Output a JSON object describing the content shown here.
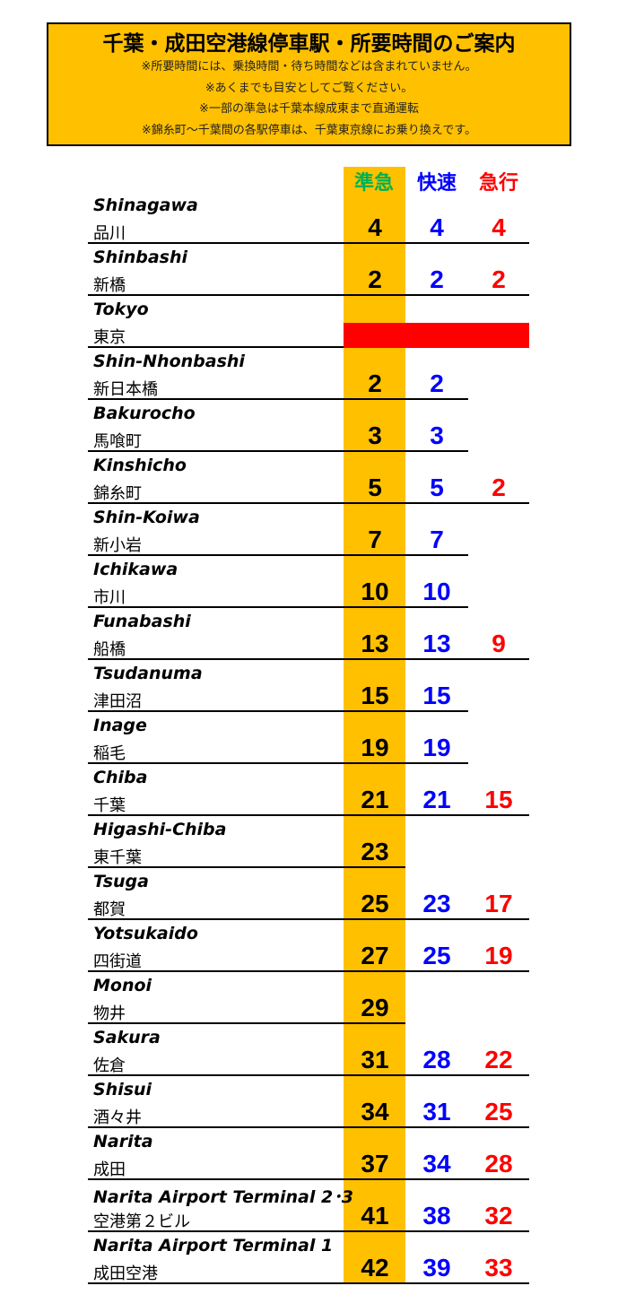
{
  "header": {
    "title": "千葉・成田空港線停車駅・所要時間のご案内",
    "notes": [
      "※所要時間には、乗換時間・待ち時間などは含まれていません。",
      "※あくまでも目安としてご覧ください。",
      "※一部の準急は千葉本線成東まで直通運転",
      "※錦糸町～千葉間の各駅停車は、千葉東京線にお乗り換えです。"
    ]
  },
  "columns": [
    {
      "label": "準急",
      "color": "#00b050"
    },
    {
      "label": "快速",
      "color": "#0000ff"
    },
    {
      "label": "急行",
      "color": "#ff0000"
    }
  ],
  "tokyo_bar_color": "#ff0000",
  "stations": [
    {
      "en": "Shinagawa",
      "ja": "品川",
      "junkyu": "4",
      "kaisoku": "4",
      "kyuko": "4"
    },
    {
      "en": "Shinbashi",
      "ja": "新橋",
      "junkyu": "2",
      "kaisoku": "2",
      "kyuko": "2"
    },
    {
      "en": "Tokyo",
      "ja": "東京",
      "junkyu": "",
      "kaisoku": "",
      "kyuko": ""
    },
    {
      "en": "Shin-Nhonbashi",
      "ja": "新日本橋",
      "junkyu": "2",
      "kaisoku": "2",
      "kyuko": ""
    },
    {
      "en": "Bakurocho",
      "ja": "馬喰町",
      "junkyu": "3",
      "kaisoku": "3",
      "kyuko": ""
    },
    {
      "en": "Kinshicho",
      "ja": "錦糸町",
      "junkyu": "5",
      "kaisoku": "5",
      "kyuko": "2"
    },
    {
      "en": "Shin-Koiwa",
      "ja": "新小岩",
      "junkyu": "7",
      "kaisoku": "7",
      "kyuko": ""
    },
    {
      "en": "Ichikawa",
      "ja": "市川",
      "junkyu": "10",
      "kaisoku": "10",
      "kyuko": ""
    },
    {
      "en": "Funabashi",
      "ja": "船橋",
      "junkyu": "13",
      "kaisoku": "13",
      "kyuko": "9"
    },
    {
      "en": "Tsudanuma",
      "ja": "津田沼",
      "junkyu": "15",
      "kaisoku": "15",
      "kyuko": ""
    },
    {
      "en": "Inage",
      "ja": "稲毛",
      "junkyu": "19",
      "kaisoku": "19",
      "kyuko": ""
    },
    {
      "en": "Chiba",
      "ja": "千葉",
      "junkyu": "21",
      "kaisoku": "21",
      "kyuko": "15"
    },
    {
      "en": "Higashi-Chiba",
      "ja": "東千葉",
      "junkyu": "23",
      "kaisoku": "",
      "kyuko": ""
    },
    {
      "en": "Tsuga",
      "ja": "都賀",
      "junkyu": "25",
      "kaisoku": "23",
      "kyuko": "17"
    },
    {
      "en": "Yotsukaido",
      "ja": "四街道",
      "junkyu": "27",
      "kaisoku": "25",
      "kyuko": "19"
    },
    {
      "en": "Monoi",
      "ja": "物井",
      "junkyu": "29",
      "kaisoku": "",
      "kyuko": ""
    },
    {
      "en": "Sakura",
      "ja": "佐倉",
      "junkyu": "31",
      "kaisoku": "28",
      "kyuko": "22"
    },
    {
      "en": "Shisui",
      "ja": "酒々井",
      "junkyu": "34",
      "kaisoku": "31",
      "kyuko": "25"
    },
    {
      "en": "Narita",
      "ja": "成田",
      "junkyu": "37",
      "kaisoku": "34",
      "kyuko": "28"
    },
    {
      "en": "Narita Airport Terminal 2･3",
      "ja": "空港第２ビル",
      "junkyu": "41",
      "kaisoku": "38",
      "kyuko": "32"
    },
    {
      "en": "Narita Airport Terminal 1",
      "ja": "成田空港",
      "junkyu": "42",
      "kaisoku": "39",
      "kyuko": "33"
    }
  ]
}
